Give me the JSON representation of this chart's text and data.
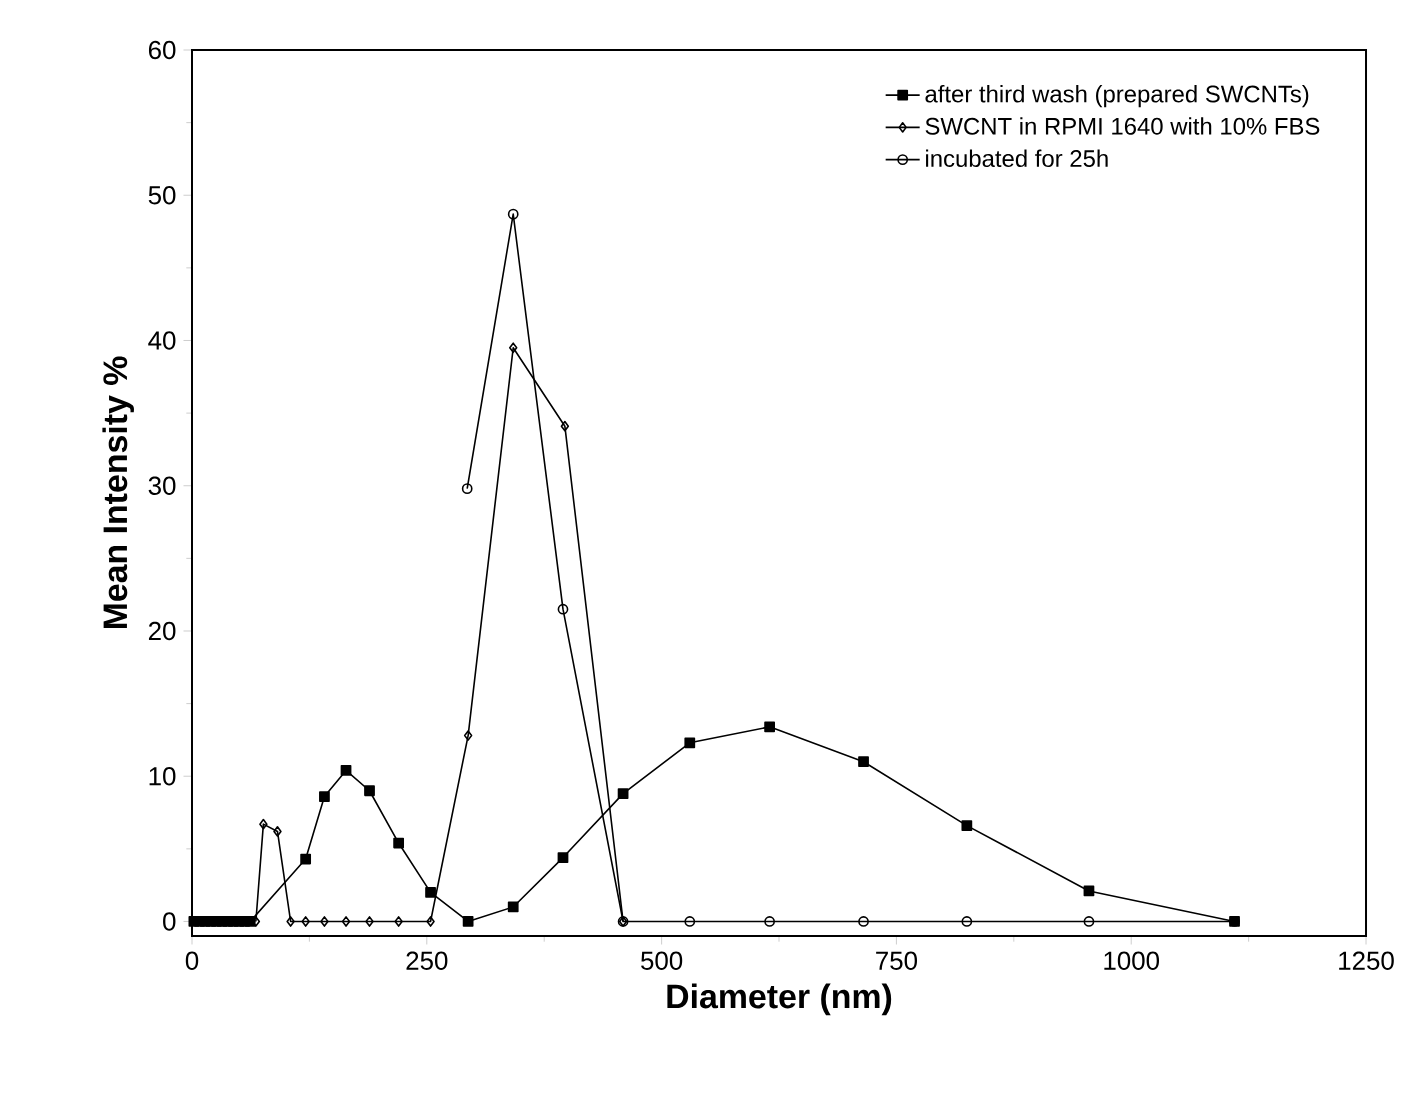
{
  "chart_data": {
    "type": "line",
    "xlabel": "Diameter (nm)",
    "ylabel": "Mean Intensity %",
    "xlim": [
      0,
      1250
    ],
    "ylim": [
      -1,
      60
    ],
    "xticks": [
      0,
      250,
      500,
      750,
      1000,
      1250
    ],
    "yticks": [
      0,
      10,
      20,
      30,
      40,
      50,
      60
    ],
    "legend": "top right",
    "grid": false,
    "series": [
      {
        "name": "after third wash (prepared SWCNTs)",
        "color": "#000000",
        "marker": "square",
        "x": [
          2,
          8,
          14,
          20,
          26,
          32,
          38,
          44,
          50,
          56,
          62,
          121,
          141,
          164,
          189,
          220,
          254,
          294,
          342,
          395,
          459,
          530,
          615,
          715,
          825,
          955,
          1110
        ],
        "values": [
          0,
          0,
          0,
          0,
          0,
          0,
          0,
          0,
          0,
          0,
          0,
          4.3,
          8.6,
          10.4,
          9.0,
          5.4,
          2.0,
          0,
          1.0,
          4.4,
          8.8,
          12.3,
          13.4,
          11.0,
          6.6,
          2.1,
          0
        ]
      },
      {
        "name": "SWCNT in RPMI 1640 with 10% FBS",
        "color": "#000000",
        "marker": "diamond",
        "x": [
          68,
          76,
          91,
          105,
          121,
          141,
          164,
          189,
          220,
          254,
          294,
          342,
          397,
          459
        ],
        "values": [
          0,
          6.7,
          6.2,
          0,
          0,
          0,
          0,
          0,
          0,
          0,
          12.8,
          39.5,
          34.1,
          0
        ]
      },
      {
        "name": "incubated for 25h",
        "color": "#000000",
        "marker": "circle",
        "x": [
          293,
          342,
          395,
          459,
          530,
          615,
          715,
          825,
          955,
          1110
        ],
        "values": [
          29.8,
          48.7,
          21.5,
          0,
          0,
          0,
          0,
          0,
          0,
          0
        ]
      }
    ]
  }
}
